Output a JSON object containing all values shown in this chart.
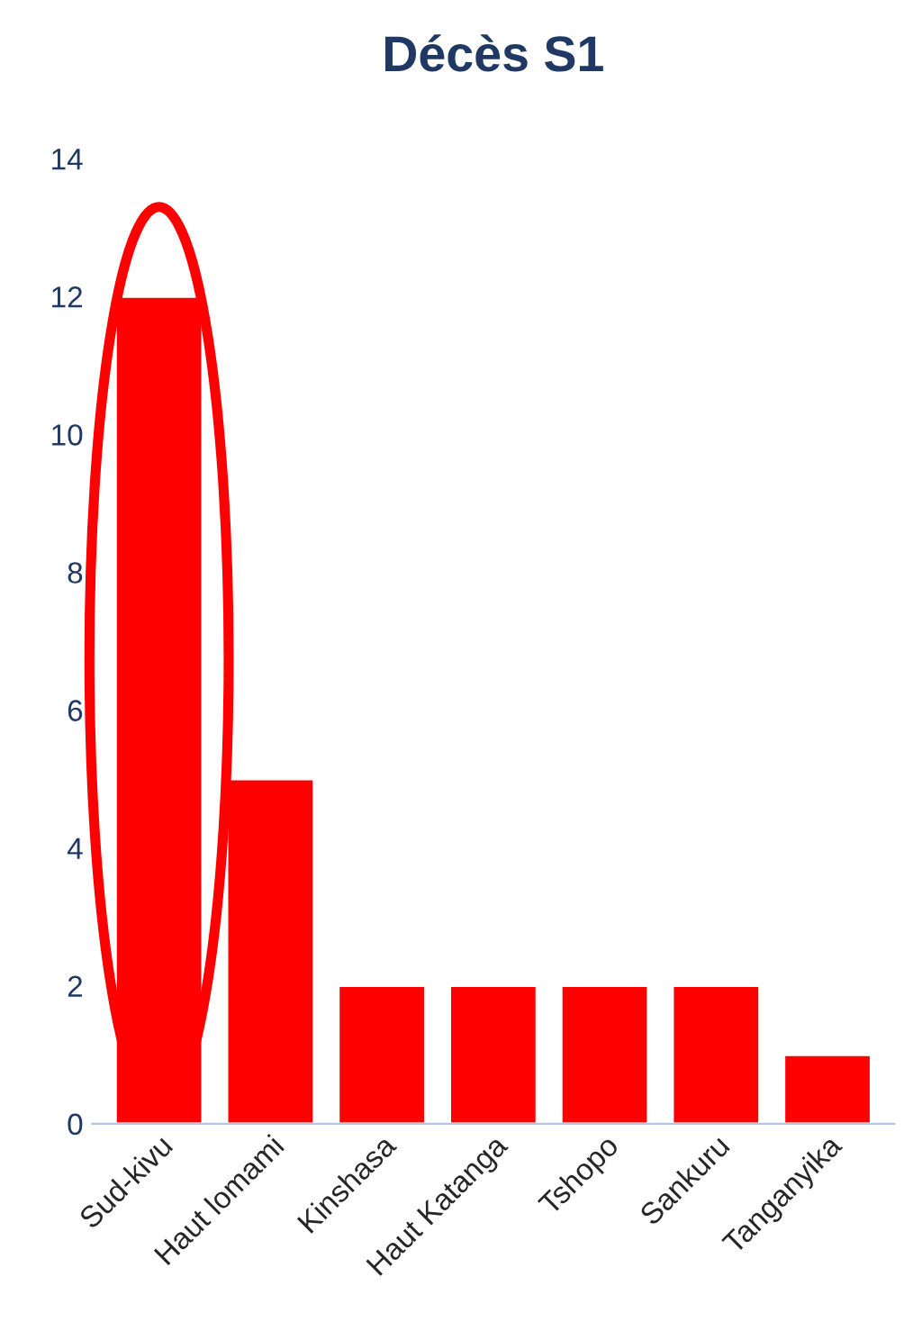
{
  "chart_data": {
    "type": "bar",
    "title": "Décès S1",
    "categories": [
      "Sud-kivu",
      "Haut lomami",
      "Kinshasa",
      "Haut Katanga",
      "Tshopo",
      "Sankuru",
      "Tanganyika"
    ],
    "values": [
      12,
      5,
      2,
      2,
      2,
      2,
      1
    ],
    "color": "#ff0000",
    "ylim": [
      0,
      14
    ],
    "yticks": [
      0,
      2,
      4,
      6,
      8,
      10,
      12,
      14
    ],
    "grid": false,
    "legend": false
  }
}
